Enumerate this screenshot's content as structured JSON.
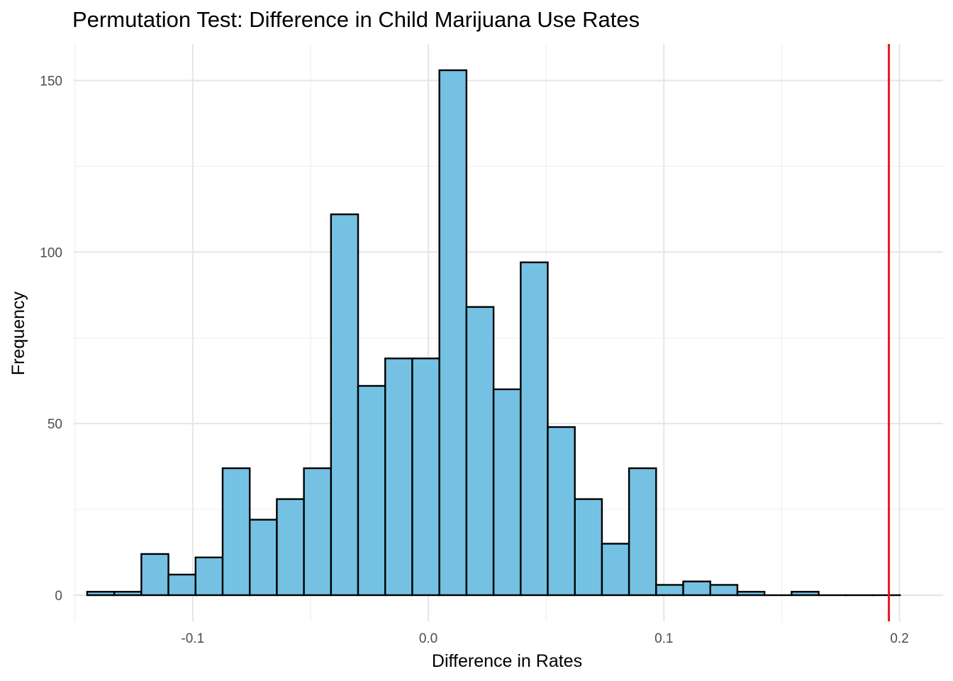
{
  "chart_data": {
    "type": "bar",
    "title": "Permutation Test: Difference in Child Marijuana Use Rates",
    "xlabel": "Difference in Rates",
    "ylabel": "Frequency",
    "x_ticks": [
      "-0.1",
      "0.0",
      "0.1",
      "0.2"
    ],
    "x_tick_values": [
      -0.1,
      0.0,
      0.1,
      0.2
    ],
    "y_ticks": [
      "0",
      "50",
      "100",
      "150"
    ],
    "y_tick_values": [
      0,
      50,
      100,
      150
    ],
    "xlim": [
      -0.1505,
      0.2185
    ],
    "ylim": [
      -7.65,
      160.65
    ],
    "grid": true,
    "bin_width": 0.0115,
    "bin_start": -0.1448,
    "values": [
      1,
      1,
      12,
      6,
      11,
      37,
      22,
      28,
      37,
      111,
      61,
      69,
      69,
      153,
      84,
      60,
      97,
      49,
      28,
      15,
      37,
      3,
      4,
      3,
      1,
      0,
      1,
      0,
      0,
      0
    ],
    "reference_line": {
      "x": 0.1955,
      "color": "#e8161d"
    },
    "bar_fill": "#74c1e4",
    "bar_outline": "#000000"
  }
}
